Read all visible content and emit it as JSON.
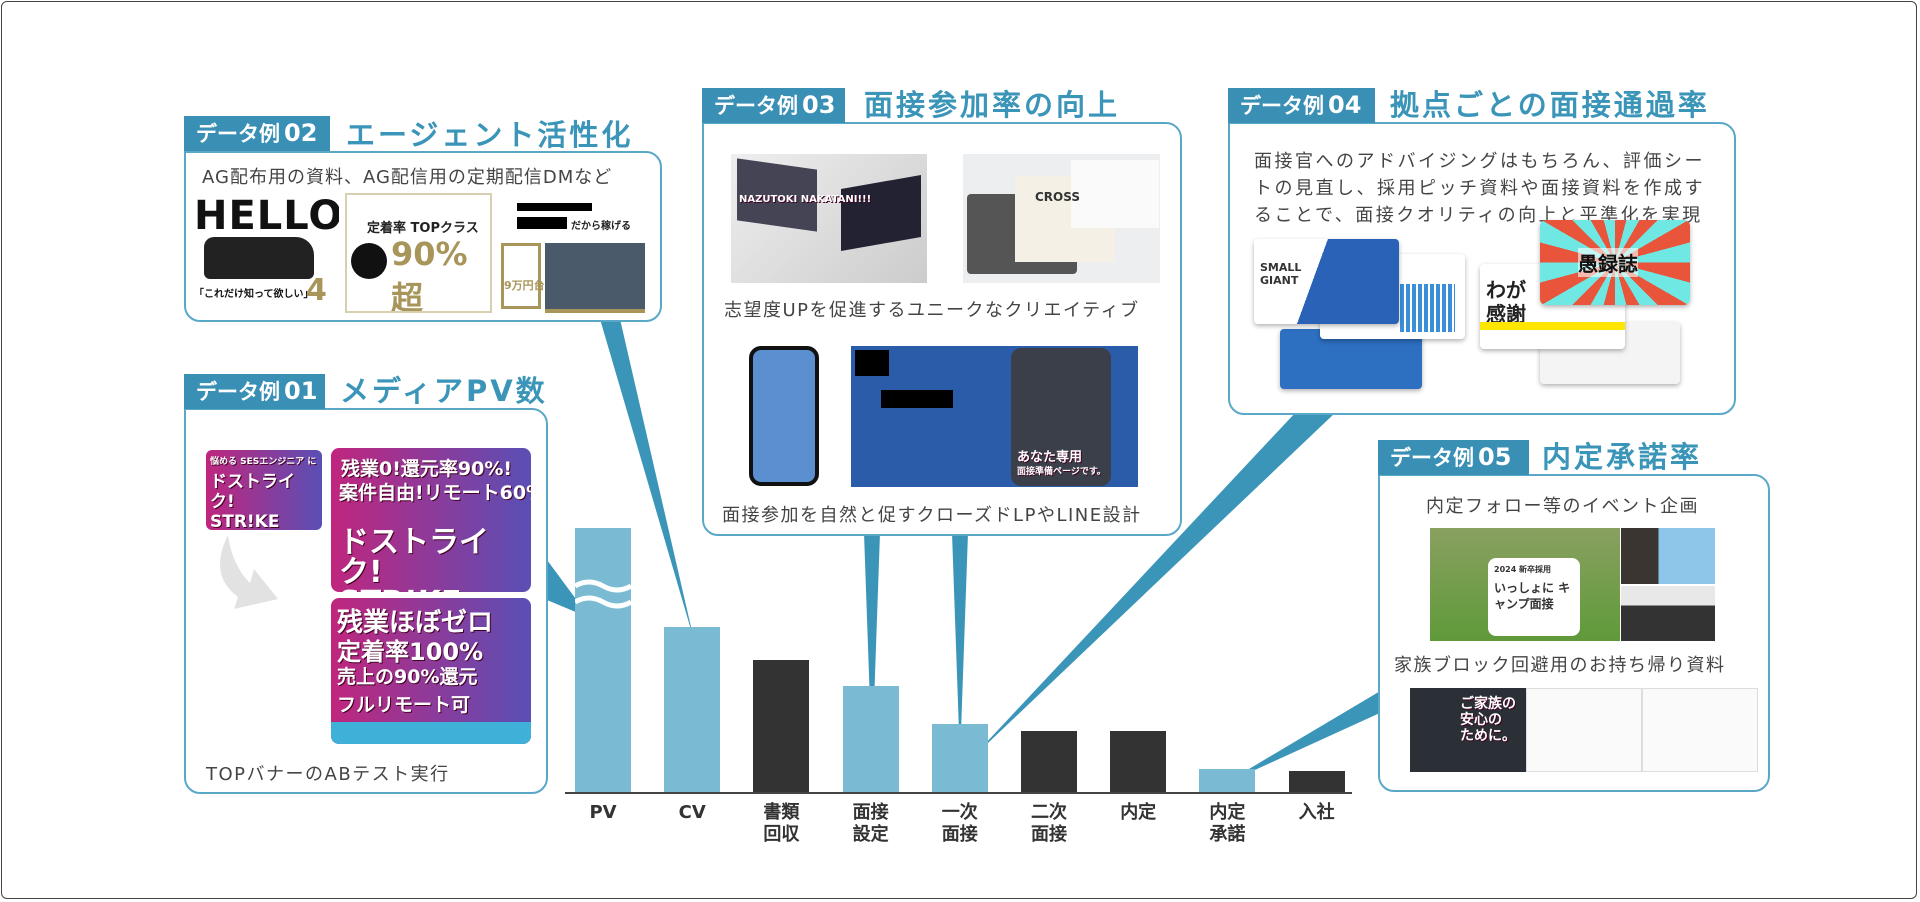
{
  "colors": {
    "accent": "#3a8fb5",
    "title": "#3a95b8",
    "border": "#5aa8c8",
    "bar_highlight": "#7bbad3",
    "bar_default": "#333333"
  },
  "sections": [
    {
      "id": "01",
      "tag": "データ例",
      "num": "01",
      "title": "メディアPV数",
      "captions": [
        "TOPバナーのABテスト実行"
      ]
    },
    {
      "id": "02",
      "tag": "データ例",
      "num": "02",
      "title": "エージェント活性化",
      "captions": [
        "AG配布用の資料、AG配信用の定期配信DMなど"
      ]
    },
    {
      "id": "03",
      "tag": "データ例",
      "num": "03",
      "title": "面接参加率の向上",
      "captions": [
        "志望度UPを促進するユニークなクリエイティブ",
        "面接参加を自然と促すクローズドLPやLINE設計"
      ]
    },
    {
      "id": "04",
      "tag": "データ例",
      "num": "04",
      "title": "拠点ごとの面接通過率",
      "captions": [
        "面接官へのアドバイジングはもちろん、評価シー",
        "トの見直し、採用ピッチ資料や面接資料を作成す",
        "ることで、面接クオリティの向上と平準化を実現"
      ]
    },
    {
      "id": "05",
      "tag": "データ例",
      "num": "05",
      "title": "内定承諾率",
      "captions": [
        "内定フォロー等のイベント企画",
        "家族ブロック回避用のお持ち帰り資料"
      ]
    }
  ],
  "images": {
    "hello": "HELLO",
    "hello_sub": "「これだけ知って欲しい」",
    "hello_num": "4",
    "teichaku": "定着率 TOPクラス",
    "teichaku_big": "90%超",
    "kasegeru": "だから稼げる",
    "man_yen": "9万円台",
    "strike_a": "ドストライク! STR!KE",
    "strike_a_top": "悩める SESエンジニア に",
    "strike_b1": "残業0!還元率90%!",
    "strike_b2": "案件自由!リモート60%!",
    "strike_b3": "ドストライク! STR!KE",
    "zero1": "残業ほぼゼロ",
    "zero2": "定着率100%",
    "zero3": "売上の90%還元",
    "zero4": "フルリモート可",
    "nazotoki": "NAZUTOKI NAKATANI!!!",
    "cross": "CROSS",
    "anata": "あなた専用",
    "anata_sub": "面接準備ページです。",
    "small_giant": "SMALL GIANT",
    "guroku": "愚録誌",
    "waga": "わが 感謝",
    "camp_year": "2024 新卒採用",
    "camp": "いっしょに キャンプ面接",
    "family": "ご家族の 安心の ために。"
  },
  "chart_data": {
    "type": "bar",
    "categories": [
      "PV",
      "CV",
      "書類\n回収",
      "面接\n設定",
      "一次\n面接",
      "二次\n面接",
      "内定",
      "内定\n承諾",
      "入社"
    ],
    "category_lines": [
      [
        "PV"
      ],
      [
        "CV"
      ],
      [
        "書類",
        "回収"
      ],
      [
        "面接",
        "設定"
      ],
      [
        "一次",
        "面接"
      ],
      [
        "二次",
        "面接"
      ],
      [
        "内定"
      ],
      [
        "内定",
        "承諾"
      ],
      [
        "入社"
      ]
    ],
    "values": [
      160,
      100,
      80,
      64,
      41,
      37,
      37,
      14,
      13
    ],
    "highlighted": [
      true,
      true,
      false,
      true,
      true,
      false,
      false,
      true,
      false
    ],
    "axis_break_on": "PV",
    "yaxis": "none",
    "grid": false,
    "legend": "none",
    "xlabel": "",
    "ylabel": ""
  }
}
